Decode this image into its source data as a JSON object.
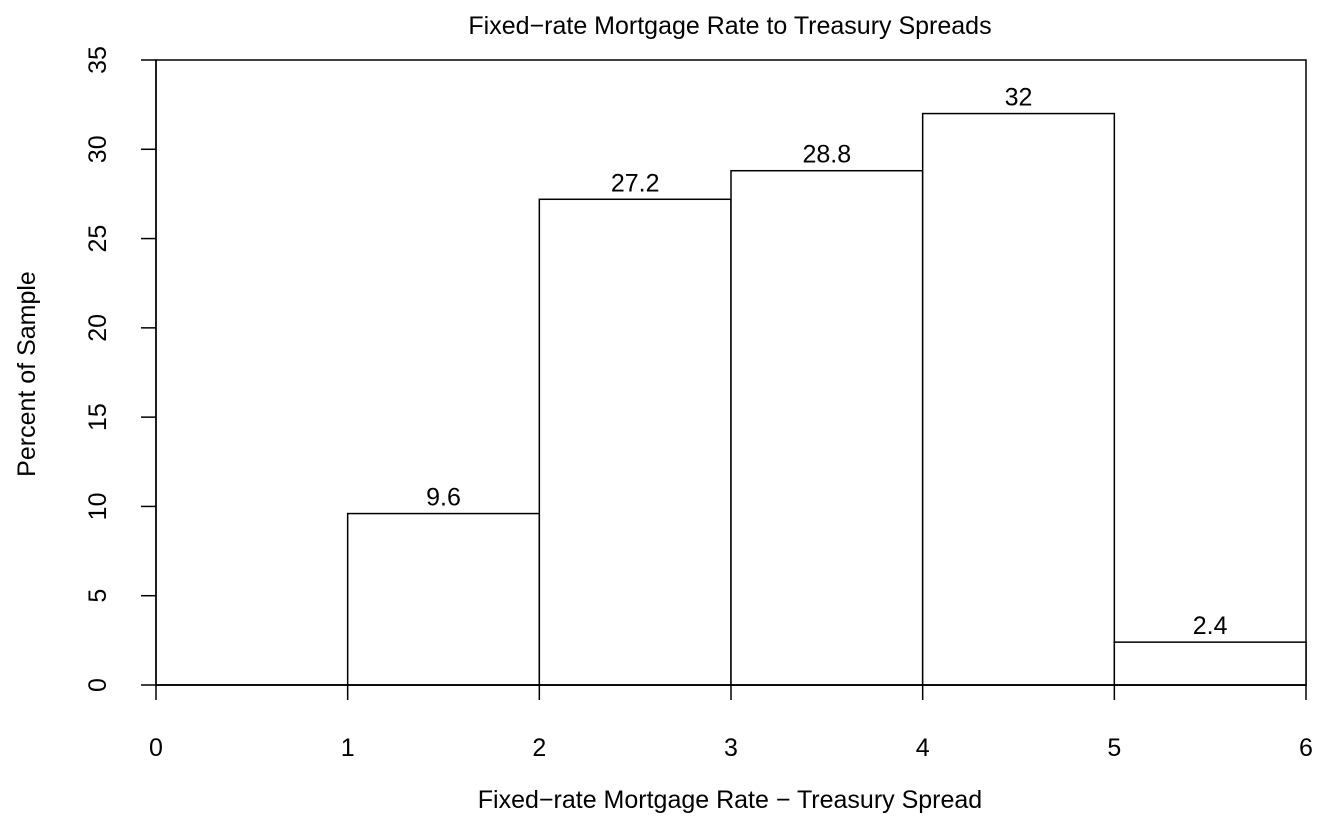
{
  "chart_data": {
    "type": "histogram",
    "title": "Fixed−rate Mortgage Rate to Treasury Spreads",
    "xlabel": "Fixed−rate Mortgage Rate − Treasury Spread",
    "ylabel": "Percent of Sample",
    "xlim": [
      0,
      6
    ],
    "ylim": [
      0,
      35
    ],
    "x_ticks": [
      0,
      1,
      2,
      3,
      4,
      5,
      6
    ],
    "y_ticks": [
      0,
      5,
      10,
      15,
      20,
      25,
      30,
      35
    ],
    "bins": [
      {
        "start": 1,
        "end": 2,
        "value": 9.6,
        "label": "9.6"
      },
      {
        "start": 2,
        "end": 3,
        "value": 27.2,
        "label": "27.2"
      },
      {
        "start": 3,
        "end": 4,
        "value": 28.8,
        "label": "28.8"
      },
      {
        "start": 4,
        "end": 5,
        "value": 32,
        "label": "32"
      },
      {
        "start": 5,
        "end": 6,
        "value": 2.4,
        "label": "2.4"
      }
    ],
    "grid": false,
    "legend": "none",
    "colors": {
      "bar_fill": "#ffffff",
      "bar_stroke": "#000000",
      "axis": "#000000"
    }
  }
}
